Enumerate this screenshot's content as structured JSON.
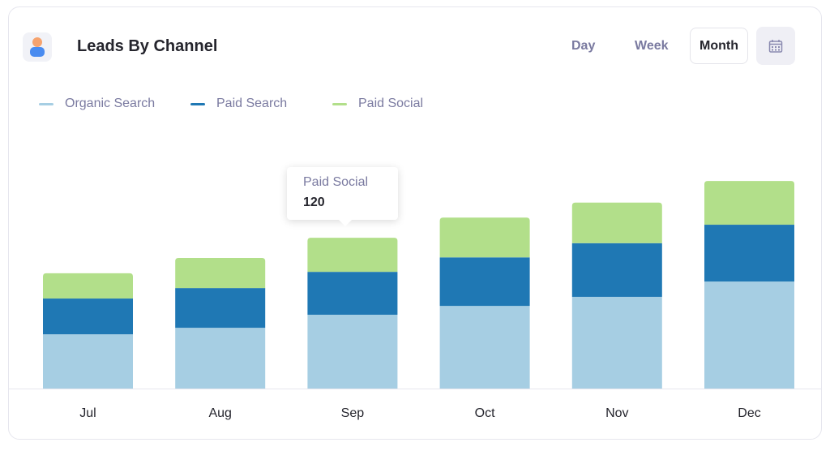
{
  "header": {
    "title": "Leads By Channel",
    "icon": "user-icon",
    "ranges": [
      "Day",
      "Week",
      "Month"
    ],
    "selected_range": "Month",
    "calendar_icon": "calendar-icon"
  },
  "tooltip": {
    "series": "Paid Social",
    "value": "120"
  },
  "chart_data": {
    "type": "bar",
    "stacked": true,
    "grid": false,
    "legend_position": "top-left",
    "categories": [
      "Jul",
      "Aug",
      "Sep",
      "Oct",
      "Nov",
      "Dec"
    ],
    "series": [
      {
        "name": "Organic Search",
        "color": "#a6cee3",
        "values": [
          191,
          214,
          260,
          291,
          323,
          377
        ]
      },
      {
        "name": "Paid Search",
        "color": "#1f78b4",
        "values": [
          126,
          140,
          151,
          171,
          189,
          200
        ]
      },
      {
        "name": "Paid Social",
        "color": "#b2df8a",
        "values": [
          89,
          106,
          120,
          140,
          143,
          154
        ]
      }
    ]
  }
}
